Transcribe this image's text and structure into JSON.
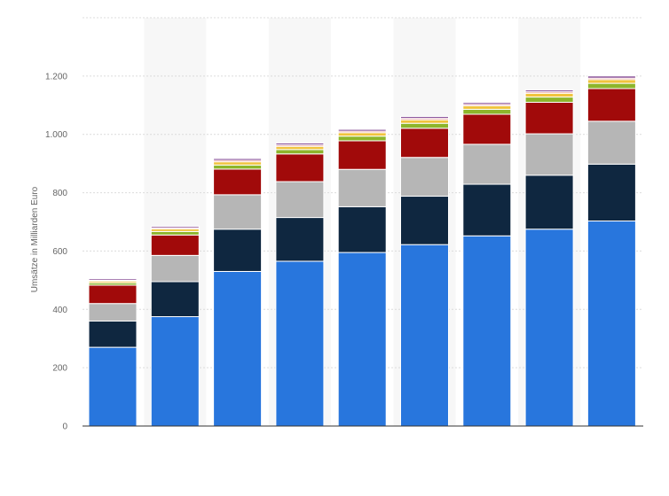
{
  "chart_data": {
    "type": "bar",
    "stacked": true,
    "categories": [
      "",
      "",
      "",
      "",
      "",
      "",
      "",
      "",
      ""
    ],
    "xlabel": "",
    "ylabel": "Umsätze in Milliarden Euro",
    "ylim": [
      0,
      1400
    ],
    "yticks": [
      0,
      200,
      400,
      600,
      800,
      1000,
      1200
    ],
    "ytick_labels": [
      "0",
      "200",
      "400",
      "600",
      "800",
      "1.000",
      "1.200"
    ],
    "grid": true,
    "alternating_column_bands": true,
    "series": [
      {
        "color": "#2876DD",
        "values": [
          270,
          375,
          530,
          565,
          595,
          622,
          652,
          675,
          703
        ]
      },
      {
        "color": "#0F2740",
        "values": [
          90,
          120,
          145,
          150,
          157,
          166,
          177,
          185,
          195
        ]
      },
      {
        "color": "#B6B6B6",
        "values": [
          60,
          90,
          118,
          123,
          128,
          133,
          137,
          142,
          147
        ]
      },
      {
        "color": "#A10A0A",
        "values": [
          63,
          70,
          88,
          95,
          98,
          100,
          103,
          108,
          112
        ]
      },
      {
        "color": "#8DB52B",
        "values": [
          8,
          12,
          14,
          15,
          16,
          17,
          17,
          18,
          18
        ]
      },
      {
        "color": "#F0C43E",
        "values": [
          6,
          9,
          11,
          11,
          12,
          12,
          12,
          13,
          13
        ]
      },
      {
        "color": "#E6928E",
        "values": [
          3,
          4,
          5,
          5,
          5,
          5,
          5,
          5,
          5
        ]
      },
      {
        "color": "#7C3B8C",
        "values": [
          5,
          5,
          6,
          6,
          6,
          6,
          6,
          6,
          7
        ]
      }
    ]
  }
}
